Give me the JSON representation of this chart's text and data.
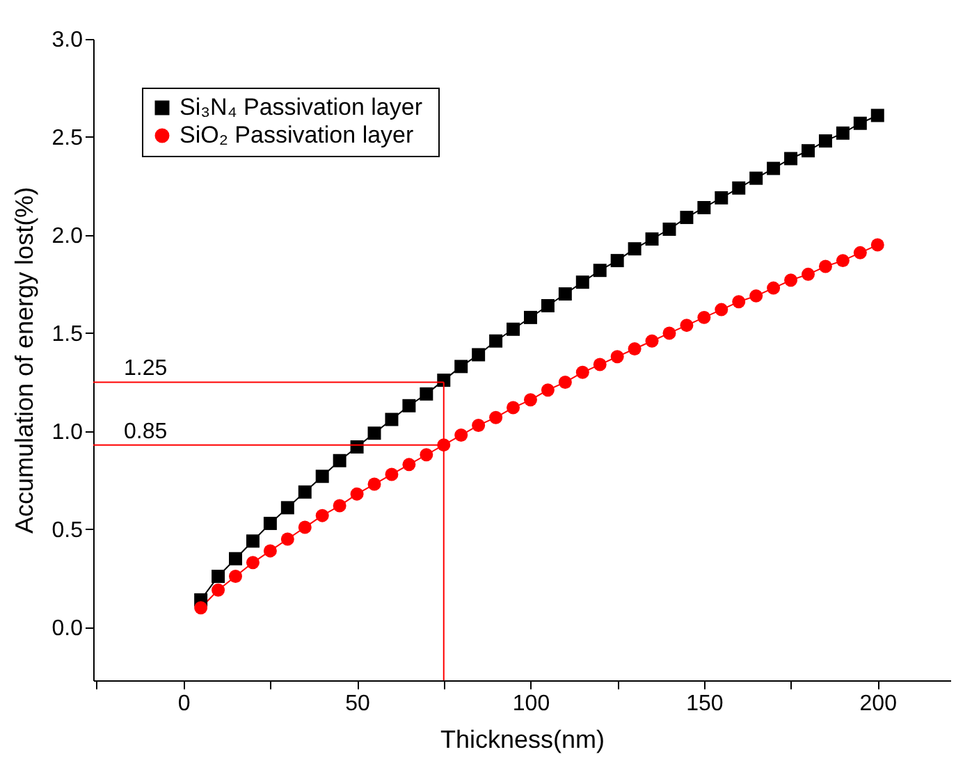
{
  "chart_data": {
    "type": "line",
    "xlabel": "Thickness(nm)",
    "ylabel": "Accumulation of energy lost(%)",
    "x": [
      5,
      10,
      15,
      20,
      25,
      30,
      35,
      40,
      45,
      50,
      55,
      60,
      65,
      70,
      75,
      80,
      85,
      90,
      95,
      100,
      105,
      110,
      115,
      120,
      125,
      130,
      135,
      140,
      145,
      150,
      155,
      160,
      165,
      170,
      175,
      180,
      185,
      190,
      195,
      200
    ],
    "series": [
      {
        "name": "Si₃N₄  Passivation layer",
        "color": "#000000",
        "marker": "square",
        "values": [
          0.14,
          0.26,
          0.35,
          0.44,
          0.53,
          0.61,
          0.69,
          0.77,
          0.85,
          0.92,
          0.99,
          1.06,
          1.13,
          1.19,
          1.26,
          1.33,
          1.39,
          1.46,
          1.52,
          1.58,
          1.64,
          1.7,
          1.76,
          1.82,
          1.87,
          1.93,
          1.98,
          2.03,
          2.09,
          2.14,
          2.19,
          2.24,
          2.29,
          2.34,
          2.39,
          2.43,
          2.48,
          2.52,
          2.57,
          2.61
        ]
      },
      {
        "name": "SiO₂ Passivation layer",
        "color": "#ff0000",
        "marker": "circle",
        "values": [
          0.1,
          0.19,
          0.26,
          0.33,
          0.39,
          0.45,
          0.51,
          0.57,
          0.62,
          0.68,
          0.73,
          0.78,
          0.83,
          0.88,
          0.93,
          0.98,
          1.03,
          1.07,
          1.12,
          1.16,
          1.21,
          1.25,
          1.3,
          1.34,
          1.38,
          1.42,
          1.46,
          1.5,
          1.54,
          1.58,
          1.62,
          1.66,
          1.69,
          1.73,
          1.77,
          1.8,
          1.84,
          1.87,
          1.91,
          1.95
        ]
      }
    ],
    "xlim": [
      -26,
      221
    ],
    "xticks": [
      {
        "value": -25,
        "label": null
      },
      0,
      {
        "value": 25,
        "label": null
      },
      50,
      {
        "value": 75,
        "label": null
      },
      100,
      {
        "value": 125,
        "label": null
      },
      150,
      {
        "value": 175,
        "label": null
      },
      200
    ],
    "ylim": [
      -0.27,
      3.0
    ],
    "yticks": [
      {
        "value": 0,
        "label": "0.0"
      },
      {
        "value": 0.5,
        "label": "0.5"
      },
      {
        "value": 1,
        "label": "1.0"
      },
      {
        "value": 1.5,
        "label": "1.5"
      },
      {
        "value": 2,
        "label": "2.0"
      },
      {
        "value": 2.5,
        "label": "2.5"
      },
      {
        "value": 3,
        "label": "3.0"
      }
    ],
    "ref_lines": [
      {
        "axis": "y",
        "value": 1.25,
        "label": "1.25",
        "color": "#ff0000"
      },
      {
        "axis": "y",
        "value": 0.93,
        "color": "#ff0000"
      },
      {
        "axis": "x",
        "value": 75,
        "color": "#ff0000"
      }
    ],
    "annotations": [
      "0.85"
    ],
    "legend": "top left",
    "grid": false,
    "line_style": "solid"
  }
}
